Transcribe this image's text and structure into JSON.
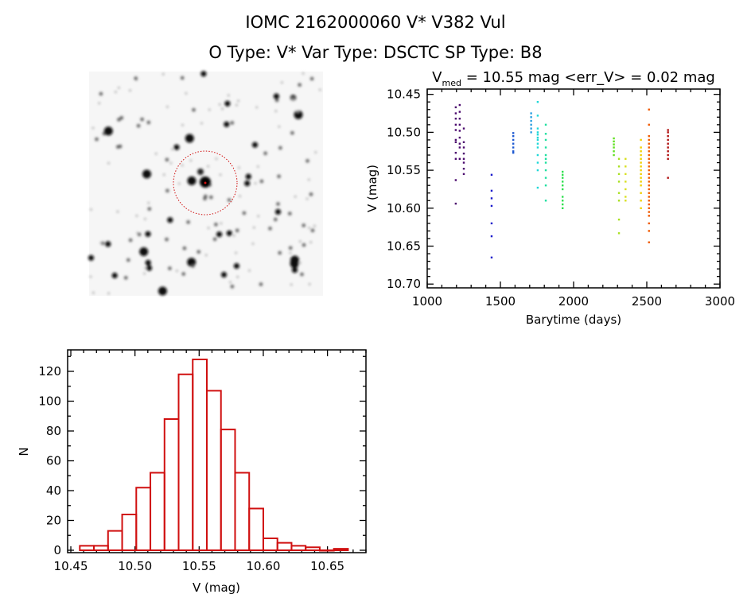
{
  "header": {
    "title": "IOMC 2162000060    V* V382 Vul",
    "subtitle": "O Type: V*   Var Type: DSCTC   SP Type: B8"
  },
  "image_panel": {
    "description_text": "",
    "marker_color": "#d01010"
  },
  "chart_data": [
    {
      "type": "scatter",
      "title_main": "V",
      "title_sub": "med",
      "title_rest": " = 10.55 mag <err_V> = 0.02 mag",
      "xlabel": "Barytime (days)",
      "ylabel": "V (mag)",
      "xlim": [
        1000,
        3000
      ],
      "ylim": [
        10.443,
        10.705
      ],
      "y_inverted": true,
      "xticks": [
        "1000",
        "1500",
        "2000",
        "2500",
        "3000"
      ],
      "yticks": [
        "10.45",
        "10.50",
        "10.55",
        "10.60",
        "10.65",
        "10.70"
      ],
      "grid": false,
      "groups": [
        {
          "x": 1195,
          "color": "#4b0a6e",
          "y": [
            10.467,
            10.475,
            10.482,
            10.49,
            10.497,
            10.51,
            10.513,
            10.527,
            10.535,
            10.563,
            10.594
          ]
        },
        {
          "x": 1222,
          "color": "#4b0a6e",
          "y": [
            10.464,
            10.473,
            10.482,
            10.49,
            10.498,
            10.507,
            10.515,
            10.52,
            10.535
          ]
        },
        {
          "x": 1250,
          "color": "#4b0a6e",
          "y": [
            10.495,
            10.513,
            10.52,
            10.528,
            10.535,
            10.54,
            10.548,
            10.555
          ]
        },
        {
          "x": 1440,
          "color": "#1a1acc",
          "y": [
            10.556,
            10.577,
            10.587,
            10.597,
            10.62,
            10.637,
            10.665
          ]
        },
        {
          "x": 1588,
          "color": "#1e5ad2",
          "y": [
            10.501,
            10.505,
            10.51,
            10.515,
            10.52,
            10.525,
            10.527
          ]
        },
        {
          "x": 1710,
          "color": "#2a9ee0",
          "y": [
            10.475,
            10.48,
            10.485,
            10.49,
            10.495,
            10.5
          ]
        },
        {
          "x": 1755,
          "color": "#20d8d8",
          "y": [
            10.46,
            10.478,
            10.495,
            10.5,
            10.503,
            10.507,
            10.51,
            10.515,
            10.52,
            10.53,
            10.54,
            10.55,
            10.573
          ]
        },
        {
          "x": 1810,
          "color": "#20e0a0",
          "y": [
            10.49,
            10.502,
            10.51,
            10.52,
            10.53,
            10.535,
            10.54,
            10.55,
            10.56,
            10.57,
            10.59
          ]
        },
        {
          "x": 1925,
          "color": "#30e050",
          "y": [
            10.552,
            10.556,
            10.56,
            10.565,
            10.57,
            10.575,
            10.585,
            10.59,
            10.595,
            10.6
          ]
        },
        {
          "x": 2275,
          "color": "#60e020",
          "y": [
            10.508,
            10.512,
            10.516,
            10.52,
            10.525,
            10.53
          ]
        },
        {
          "x": 2310,
          "color": "#a8e020",
          "y": [
            10.535,
            10.545,
            10.555,
            10.565,
            10.58,
            10.59,
            10.615,
            10.633
          ]
        },
        {
          "x": 2355,
          "color": "#d8e020",
          "y": [
            10.535,
            10.545,
            10.555,
            10.565,
            10.575,
            10.585,
            10.59
          ]
        },
        {
          "x": 2460,
          "color": "#f0d000",
          "y": [
            10.51,
            10.52,
            10.525,
            10.53,
            10.535,
            10.54,
            10.545,
            10.55,
            10.555,
            10.56,
            10.565,
            10.57,
            10.58,
            10.59,
            10.6
          ]
        },
        {
          "x": 2515,
          "color": "#f05a00",
          "y": [
            10.47,
            10.49,
            10.505,
            10.51,
            10.515,
            10.52,
            10.525,
            10.53,
            10.535,
            10.54,
            10.545,
            10.55,
            10.555,
            10.56,
            10.565,
            10.57,
            10.575,
            10.58,
            10.585,
            10.59,
            10.595,
            10.6,
            10.605,
            10.61,
            10.62,
            10.63,
            10.645
          ]
        },
        {
          "x": 2645,
          "color": "#b01010",
          "y": [
            10.497,
            10.5,
            10.505,
            10.51,
            10.515,
            10.52,
            10.525,
            10.53,
            10.535,
            10.56
          ]
        }
      ]
    },
    {
      "type": "bar",
      "subtype": "histogram",
      "xlabel": "V (mag)",
      "ylabel": "N",
      "xlim": [
        10.4475,
        10.68
      ],
      "ylim": [
        -1.6,
        134.4
      ],
      "xticks": [
        "10.45",
        "10.50",
        "10.55",
        "10.60",
        "10.65"
      ],
      "yticks": [
        "0",
        "20",
        "40",
        "60",
        "80",
        "100",
        "120"
      ],
      "bin_start": 10.457,
      "bin_width": 0.011,
      "counts": [
        3,
        3,
        13,
        24,
        42,
        52,
        88,
        118,
        128,
        107,
        81,
        52,
        28,
        8,
        5,
        3,
        2,
        0,
        1
      ],
      "color": "#d01010",
      "grid": false
    }
  ]
}
